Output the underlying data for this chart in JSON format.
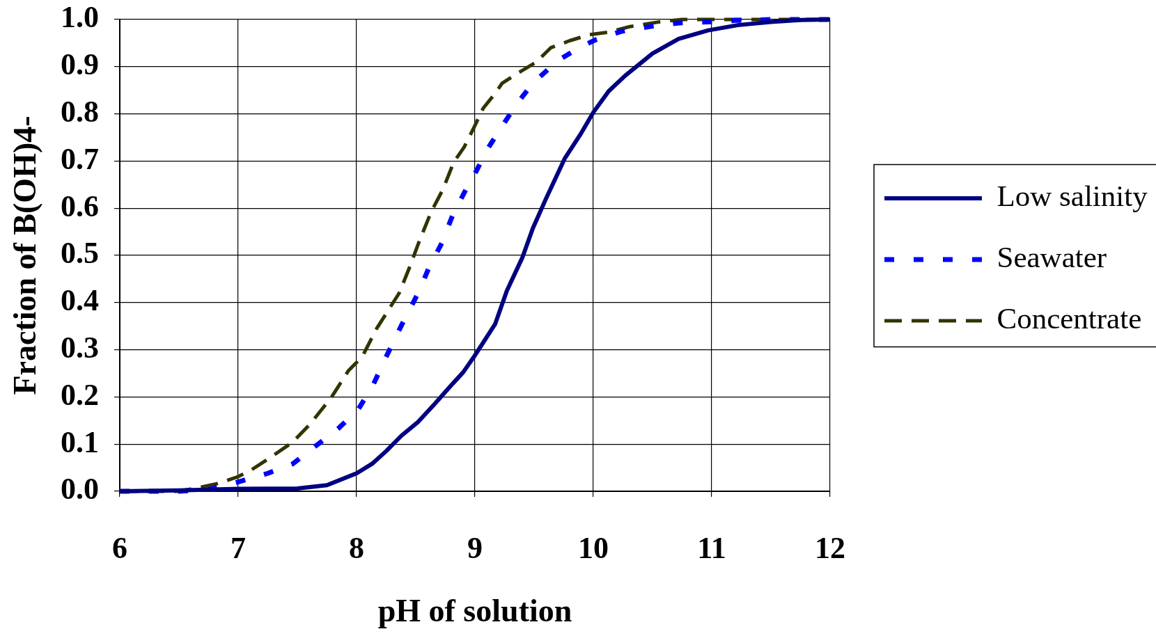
{
  "chart_data": {
    "type": "line",
    "xlabel": "pH of solution",
    "ylabel": "Fraction of B(OH)4-",
    "xlim": [
      6,
      12
    ],
    "xticks": [
      6,
      7,
      8,
      9,
      10,
      11,
      12
    ],
    "ylim": [
      0,
      1
    ],
    "yticks": [
      {
        "value": 0,
        "label": "0.0"
      },
      0.1,
      0.2,
      0.3,
      0.4,
      0.5,
      0.6,
      0.7,
      0.8,
      0.9,
      {
        "value": 1,
        "label": "1.0"
      }
    ],
    "grid": true,
    "legend": "right",
    "marker": "none",
    "series": [
      {
        "name": "Low salinity",
        "color": "#000080",
        "line_style": "solid",
        "x": [
          6,
          6.5,
          7,
          7.5,
          7.75,
          8,
          8.13,
          8.25,
          8.38,
          8.52,
          8.66,
          8.79,
          8.9,
          9,
          9.17,
          9.27,
          9.4,
          9.49,
          9.6,
          9.76,
          9.89,
          10,
          10.13,
          10.27,
          10.5,
          10.72,
          10.97,
          11.22,
          11.5,
          11.75,
          12
        ],
        "values": [
          0,
          0.002,
          0.005,
          0.006,
          0.013,
          0.038,
          0.058,
          0.085,
          0.118,
          0.147,
          0.185,
          0.222,
          0.252,
          0.288,
          0.354,
          0.425,
          0.495,
          0.558,
          0.62,
          0.706,
          0.756,
          0.803,
          0.848,
          0.881,
          0.928,
          0.959,
          0.977,
          0.988,
          0.995,
          0.999,
          1
        ]
      },
      {
        "name": "Seawater",
        "color": "#0000ff",
        "line_style": "dotted",
        "x": [
          6,
          6.5,
          6.75,
          6.99,
          7.25,
          7.46,
          7.64,
          7.85,
          8.01,
          8.13,
          8.25,
          8.38,
          8.52,
          8.61,
          8.72,
          8.81,
          8.91,
          9.01,
          9.11,
          9.22,
          9.35,
          9.49,
          9.7,
          9.88,
          10.02,
          10.24,
          10.53,
          10.74,
          11,
          11.2,
          11.5,
          12
        ],
        "values": [
          0,
          0,
          0.004,
          0.019,
          0.038,
          0.058,
          0.093,
          0.134,
          0.172,
          0.22,
          0.285,
          0.352,
          0.42,
          0.473,
          0.526,
          0.584,
          0.633,
          0.678,
          0.727,
          0.77,
          0.82,
          0.865,
          0.913,
          0.94,
          0.957,
          0.975,
          0.987,
          0.993,
          0.995,
          0.998,
          1,
          1
        ]
      },
      {
        "name": "Concentrate",
        "color": "#333300",
        "line_style": "dashed",
        "x": [
          6,
          6.5,
          6.69,
          6.82,
          6.99,
          7.11,
          7.28,
          7.46,
          7.61,
          7.79,
          7.93,
          8.05,
          8.17,
          8.36,
          8.45,
          8.53,
          8.63,
          8.73,
          8.82,
          8.91,
          8.99,
          9.07,
          9.17,
          9.23,
          9.36,
          9.52,
          9.64,
          9.8,
          9.97,
          10.13,
          10.31,
          10.56,
          10.75,
          12
        ],
        "values": [
          0,
          0,
          0.009,
          0.016,
          0.03,
          0.045,
          0.073,
          0.104,
          0.143,
          0.2,
          0.255,
          0.286,
          0.345,
          0.42,
          0.476,
          0.53,
          0.592,
          0.64,
          0.697,
          0.73,
          0.77,
          0.812,
          0.843,
          0.865,
          0.886,
          0.91,
          0.94,
          0.955,
          0.968,
          0.973,
          0.985,
          0.995,
          1,
          1
        ]
      }
    ]
  }
}
